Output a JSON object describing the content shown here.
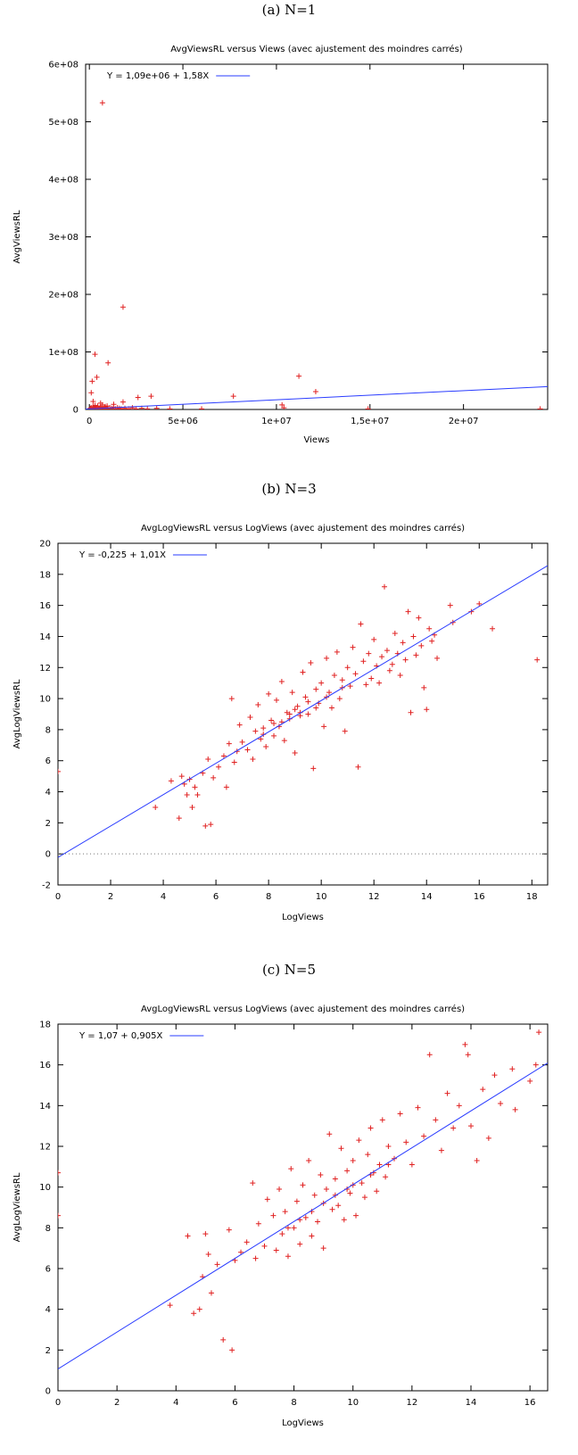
{
  "figures": [
    {
      "caption": "(a) N=1"
    },
    {
      "caption": "(b) N=3"
    },
    {
      "caption": "(c) N=5"
    }
  ],
  "chart_data": [
    {
      "type": "scatter",
      "title": "AvgViewsRL versus Views (avec ajustement des moindres carrés)",
      "xlabel": "Views",
      "ylabel": "AvgViewsRL",
      "xlim": [
        -200000,
        24500000
      ],
      "ylim": [
        0,
        600000000
      ],
      "xticks": [
        0,
        5000000,
        10000000,
        15000000,
        20000000
      ],
      "xtick_labels": [
        "0",
        "5e+06",
        "1e+07",
        "1,5e+07",
        "2e+07"
      ],
      "yticks": [
        0,
        100000000,
        200000000,
        300000000,
        400000000,
        500000000,
        600000000
      ],
      "ytick_labels": [
        "0",
        "1e+08",
        "2e+08",
        "3e+08",
        "4e+08",
        "5e+08",
        "6e+08"
      ],
      "legend": "Y = 1,09e+06 + 1,58X",
      "legend_position": "top-left",
      "zero_line": false,
      "colors": {
        "points": "#e02020",
        "fit": "#2a3cff"
      },
      "fit": {
        "intercept": 1090000,
        "slope": 1.58
      },
      "points": [
        [
          700000,
          533000000
        ],
        [
          1800000,
          178000000
        ],
        [
          300000,
          96000000
        ],
        [
          1000000,
          81000000
        ],
        [
          11200000,
          58000000
        ],
        [
          400000,
          56000000
        ],
        [
          150000,
          49000000
        ],
        [
          100000,
          29000000
        ],
        [
          12100000,
          31000000
        ],
        [
          7700000,
          23000000
        ],
        [
          3300000,
          23000000
        ],
        [
          2600000,
          21000000
        ],
        [
          200000,
          14000000
        ],
        [
          1800000,
          13000000
        ],
        [
          600000,
          11000000
        ],
        [
          1300000,
          9000000
        ],
        [
          10300000,
          8000000
        ],
        [
          10400000,
          3000000
        ],
        [
          50000,
          2000000
        ],
        [
          100000,
          3000000
        ],
        [
          150000,
          1000000
        ],
        [
          200000,
          5000000
        ],
        [
          250000,
          2000000
        ],
        [
          300000,
          7000000
        ],
        [
          350000,
          1000000
        ],
        [
          400000,
          3000000
        ],
        [
          450000,
          6000000
        ],
        [
          500000,
          2000000
        ],
        [
          550000,
          1000000
        ],
        [
          600000,
          4000000
        ],
        [
          650000,
          2000000
        ],
        [
          700000,
          8000000
        ],
        [
          750000,
          1000000
        ],
        [
          800000,
          3000000
        ],
        [
          850000,
          5000000
        ],
        [
          900000,
          2000000
        ],
        [
          950000,
          6000000
        ],
        [
          1000000,
          1000000
        ],
        [
          1100000,
          3000000
        ],
        [
          1200000,
          2000000
        ],
        [
          1300000,
          4000000
        ],
        [
          1400000,
          1000000
        ],
        [
          1500000,
          3000000
        ],
        [
          1600000,
          2000000
        ],
        [
          1700000,
          1000000
        ],
        [
          1900000,
          2000000
        ],
        [
          2100000,
          1000000
        ],
        [
          2300000,
          3000000
        ],
        [
          2500000,
          1000000
        ],
        [
          2800000,
          2000000
        ],
        [
          3100000,
          1000000
        ],
        [
          3600000,
          2000000
        ],
        [
          4300000,
          1000000
        ],
        [
          6000000,
          1000000
        ],
        [
          14900000,
          1000000
        ],
        [
          24100000,
          1000000
        ]
      ]
    },
    {
      "type": "scatter",
      "title": "AvgLogViewsRL versus LogViews (avec ajustement des moindres carrés)",
      "xlabel": "LogViews",
      "ylabel": "AvgLogViewsRL",
      "xlim": [
        0,
        18.6
      ],
      "ylim": [
        -2,
        20
      ],
      "xticks": [
        0,
        2,
        4,
        6,
        8,
        10,
        12,
        14,
        16,
        18
      ],
      "xtick_labels": [
        "0",
        "2",
        "4",
        "6",
        "8",
        "10",
        "12",
        "14",
        "16",
        "18"
      ],
      "yticks": [
        -2,
        0,
        2,
        4,
        6,
        8,
        10,
        12,
        14,
        16,
        18,
        20
      ],
      "ytick_labels": [
        "-2",
        "0",
        "2",
        "4",
        "6",
        "8",
        "10",
        "12",
        "14",
        "16",
        "18",
        "20"
      ],
      "legend": "Y = -0,225 + 1,01X",
      "legend_position": "top-left",
      "zero_line": true,
      "colors": {
        "points": "#e02020",
        "fit": "#2a3cff"
      },
      "fit": {
        "intercept": -0.225,
        "slope": 1.01
      },
      "points": [
        [
          0,
          5.3
        ],
        [
          3.7,
          3.0
        ],
        [
          4.6,
          2.3
        ],
        [
          5.6,
          1.8
        ],
        [
          5.8,
          1.9
        ],
        [
          4.3,
          4.7
        ],
        [
          4.7,
          5.0
        ],
        [
          4.8,
          4.5
        ],
        [
          4.9,
          3.8
        ],
        [
          5.0,
          4.8
        ],
        [
          5.1,
          3.0
        ],
        [
          5.2,
          4.3
        ],
        [
          5.3,
          3.8
        ],
        [
          5.5,
          5.2
        ],
        [
          5.7,
          6.1
        ],
        [
          5.9,
          4.9
        ],
        [
          6.1,
          5.6
        ],
        [
          6.3,
          6.3
        ],
        [
          6.4,
          4.3
        ],
        [
          6.5,
          7.1
        ],
        [
          6.6,
          10.0
        ],
        [
          6.7,
          5.9
        ],
        [
          6.8,
          6.6
        ],
        [
          6.9,
          8.3
        ],
        [
          7.0,
          7.2
        ],
        [
          7.2,
          6.7
        ],
        [
          7.3,
          8.8
        ],
        [
          7.4,
          6.1
        ],
        [
          7.5,
          7.9
        ],
        [
          7.6,
          9.6
        ],
        [
          7.7,
          7.4
        ],
        [
          7.8,
          8.1
        ],
        [
          7.9,
          6.9
        ],
        [
          8.0,
          10.3
        ],
        [
          8.1,
          8.6
        ],
        [
          8.2,
          7.6
        ],
        [
          8.3,
          9.9
        ],
        [
          8.4,
          8.2
        ],
        [
          8.5,
          11.1
        ],
        [
          8.6,
          7.3
        ],
        [
          8.7,
          9.1
        ],
        [
          8.8,
          8.7
        ],
        [
          8.9,
          10.4
        ],
        [
          9.0,
          6.5
        ],
        [
          9.1,
          9.5
        ],
        [
          9.2,
          8.9
        ],
        [
          9.3,
          11.7
        ],
        [
          9.4,
          10.1
        ],
        [
          9.5,
          9.0
        ],
        [
          9.6,
          12.3
        ],
        [
          9.7,
          5.5
        ],
        [
          9.8,
          10.6
        ],
        [
          9.9,
          9.7
        ],
        [
          10.0,
          11.0
        ],
        [
          10.1,
          8.2
        ],
        [
          10.2,
          12.6
        ],
        [
          10.3,
          10.4
        ],
        [
          10.4,
          9.4
        ],
        [
          10.5,
          11.5
        ],
        [
          10.6,
          13.0
        ],
        [
          10.7,
          10.0
        ],
        [
          10.8,
          11.2
        ],
        [
          10.9,
          7.9
        ],
        [
          11.0,
          12.0
        ],
        [
          11.1,
          10.8
        ],
        [
          11.2,
          13.3
        ],
        [
          11.3,
          11.6
        ],
        [
          11.4,
          5.6
        ],
        [
          11.5,
          14.8
        ],
        [
          11.6,
          12.4
        ],
        [
          11.7,
          10.9
        ],
        [
          11.8,
          12.9
        ],
        [
          11.9,
          11.3
        ],
        [
          12.0,
          13.8
        ],
        [
          12.1,
          12.1
        ],
        [
          12.2,
          11.0
        ],
        [
          12.3,
          12.7
        ],
        [
          12.4,
          17.2
        ],
        [
          12.5,
          13.1
        ],
        [
          12.6,
          11.8
        ],
        [
          12.7,
          12.2
        ],
        [
          12.8,
          14.2
        ],
        [
          12.9,
          12.9
        ],
        [
          13.0,
          11.5
        ],
        [
          13.1,
          13.6
        ],
        [
          13.2,
          12.5
        ],
        [
          13.3,
          15.6
        ],
        [
          13.4,
          9.1
        ],
        [
          13.5,
          14.0
        ],
        [
          13.6,
          12.8
        ],
        [
          13.7,
          15.2
        ],
        [
          13.8,
          13.4
        ],
        [
          13.9,
          10.7
        ],
        [
          14.0,
          9.3
        ],
        [
          14.1,
          14.5
        ],
        [
          14.2,
          13.7
        ],
        [
          14.3,
          14.1
        ],
        [
          14.4,
          12.6
        ],
        [
          14.9,
          16.0
        ],
        [
          15.0,
          14.9
        ],
        [
          15.7,
          15.6
        ],
        [
          16.0,
          16.1
        ],
        [
          16.5,
          14.5
        ],
        [
          18.2,
          12.5
        ],
        [
          9.0,
          9.3
        ],
        [
          8.8,
          9.0
        ],
        [
          9.2,
          9.1
        ],
        [
          9.5,
          9.8
        ],
        [
          8.5,
          8.5
        ],
        [
          10.2,
          10.1
        ],
        [
          10.8,
          10.7
        ],
        [
          7.8,
          7.7
        ],
        [
          8.2,
          8.4
        ],
        [
          9.8,
          9.4
        ]
      ]
    },
    {
      "type": "scatter",
      "title": "AvgLogViewsRL versus LogViews (avec ajustement des moindres carrés)",
      "xlabel": "LogViews",
      "ylabel": "AvgLogViewsRL",
      "xlim": [
        0,
        16.6
      ],
      "ylim": [
        0,
        18
      ],
      "xticks": [
        0,
        2,
        4,
        6,
        8,
        10,
        12,
        14,
        16
      ],
      "xtick_labels": [
        "0",
        "2",
        "4",
        "6",
        "8",
        "10",
        "12",
        "14",
        "16"
      ],
      "yticks": [
        0,
        2,
        4,
        6,
        8,
        10,
        12,
        14,
        16,
        18
      ],
      "ytick_labels": [
        "0",
        "2",
        "4",
        "6",
        "8",
        "10",
        "12",
        "14",
        "16",
        "18"
      ],
      "legend": "Y = 1,07 + 0,905X",
      "legend_position": "top-left",
      "zero_line": false,
      "colors": {
        "points": "#e02020",
        "fit": "#2a3cff"
      },
      "fit": {
        "intercept": 1.07,
        "slope": 0.905
      },
      "points": [
        [
          0,
          10.7
        ],
        [
          0,
          8.6
        ],
        [
          3.8,
          4.2
        ],
        [
          4.4,
          7.6
        ],
        [
          4.6,
          3.8
        ],
        [
          4.8,
          4.0
        ],
        [
          4.9,
          5.6
        ],
        [
          5.0,
          7.7
        ],
        [
          5.1,
          6.7
        ],
        [
          5.2,
          4.8
        ],
        [
          5.4,
          6.2
        ],
        [
          5.6,
          2.5
        ],
        [
          5.8,
          7.9
        ],
        [
          5.9,
          2.0
        ],
        [
          6.0,
          6.4
        ],
        [
          6.2,
          6.8
        ],
        [
          6.4,
          7.3
        ],
        [
          6.6,
          10.2
        ],
        [
          6.7,
          6.5
        ],
        [
          6.8,
          8.2
        ],
        [
          7.0,
          7.1
        ],
        [
          7.1,
          9.4
        ],
        [
          7.3,
          8.6
        ],
        [
          7.4,
          6.9
        ],
        [
          7.5,
          9.9
        ],
        [
          7.6,
          7.7
        ],
        [
          7.7,
          8.8
        ],
        [
          7.8,
          6.6
        ],
        [
          7.9,
          10.9
        ],
        [
          8.0,
          8.0
        ],
        [
          8.1,
          9.3
        ],
        [
          8.2,
          7.2
        ],
        [
          8.3,
          10.1
        ],
        [
          8.4,
          8.5
        ],
        [
          8.5,
          11.3
        ],
        [
          8.6,
          7.6
        ],
        [
          8.7,
          9.6
        ],
        [
          8.8,
          8.3
        ],
        [
          8.9,
          10.6
        ],
        [
          9.0,
          7.0
        ],
        [
          9.1,
          9.9
        ],
        [
          9.2,
          12.6
        ],
        [
          9.3,
          8.9
        ],
        [
          9.4,
          10.4
        ],
        [
          9.5,
          9.1
        ],
        [
          9.6,
          11.9
        ],
        [
          9.7,
          8.4
        ],
        [
          9.8,
          10.8
        ],
        [
          9.9,
          9.7
        ],
        [
          10.0,
          11.3
        ],
        [
          10.1,
          8.6
        ],
        [
          10.2,
          12.3
        ],
        [
          10.3,
          10.2
        ],
        [
          10.4,
          9.5
        ],
        [
          10.5,
          11.6
        ],
        [
          10.6,
          12.9
        ],
        [
          10.7,
          10.7
        ],
        [
          10.8,
          9.8
        ],
        [
          10.9,
          11.1
        ],
        [
          11.0,
          13.3
        ],
        [
          11.1,
          10.5
        ],
        [
          11.2,
          12.0
        ],
        [
          11.4,
          11.4
        ],
        [
          11.6,
          13.6
        ],
        [
          11.8,
          12.2
        ],
        [
          12.0,
          11.1
        ],
        [
          12.2,
          13.9
        ],
        [
          12.4,
          12.5
        ],
        [
          12.6,
          16.5
        ],
        [
          12.8,
          13.3
        ],
        [
          13.0,
          11.8
        ],
        [
          13.2,
          14.6
        ],
        [
          13.4,
          12.9
        ],
        [
          13.6,
          14.0
        ],
        [
          13.8,
          17.0
        ],
        [
          13.9,
          16.5
        ],
        [
          14.0,
          13.0
        ],
        [
          14.2,
          11.3
        ],
        [
          14.4,
          14.8
        ],
        [
          14.6,
          12.4
        ],
        [
          14.8,
          15.5
        ],
        [
          15.0,
          14.1
        ],
        [
          15.4,
          15.8
        ],
        [
          15.5,
          13.8
        ],
        [
          16.0,
          15.2
        ],
        [
          16.3,
          17.6
        ],
        [
          16.2,
          16.0
        ],
        [
          9.0,
          9.2
        ],
        [
          8.6,
          8.8
        ],
        [
          9.4,
          9.6
        ],
        [
          10.0,
          10.1
        ],
        [
          8.2,
          8.4
        ],
        [
          10.6,
          10.6
        ],
        [
          11.2,
          11.1
        ],
        [
          7.8,
          8.0
        ],
        [
          9.8,
          9.9
        ]
      ]
    }
  ]
}
